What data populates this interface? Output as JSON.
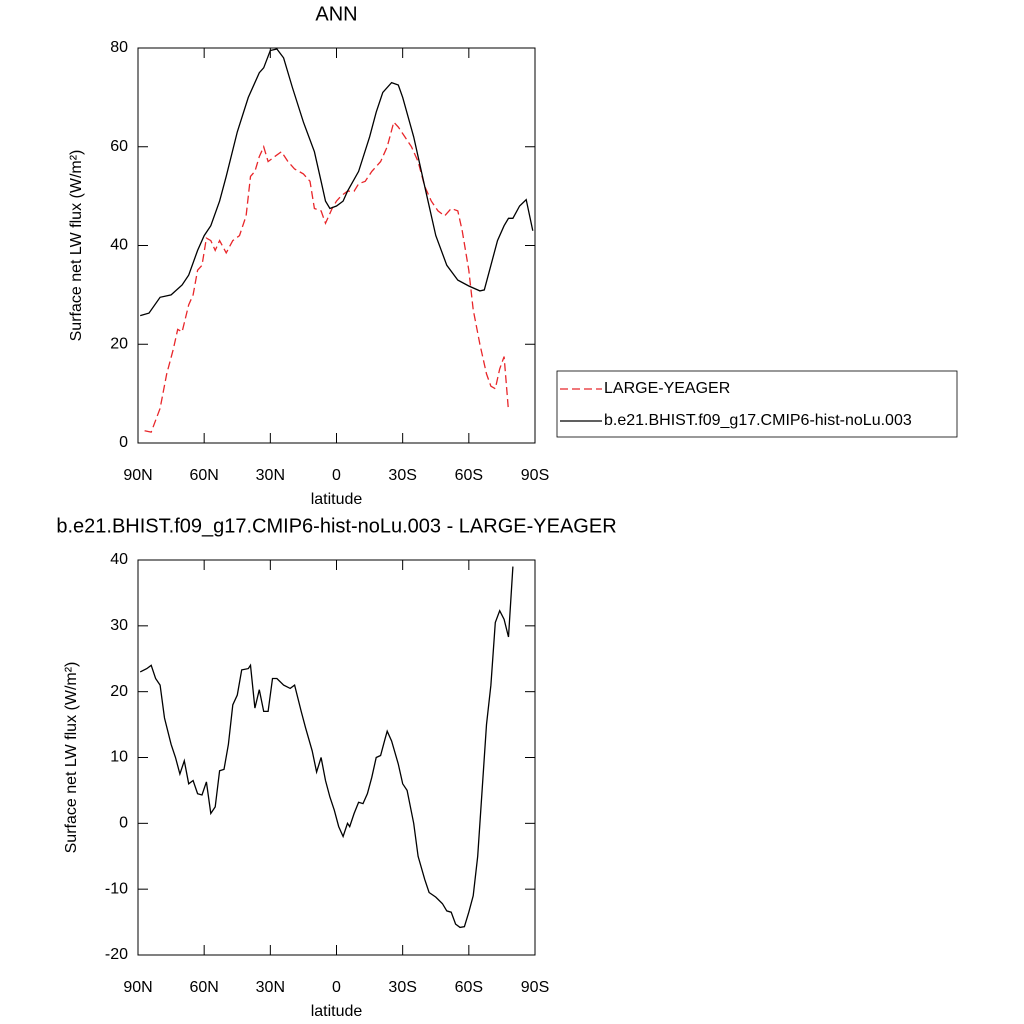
{
  "chart_data": [
    {
      "type": "line",
      "title": "ANN",
      "xlabel": "latitude",
      "ylabel": "Surface net LW flux (W/m²)",
      "xlim": [
        90,
        -90
      ],
      "ylim": [
        0,
        80
      ],
      "xticks": [
        {
          "value": 90,
          "label": "90N"
        },
        {
          "value": 60,
          "label": "60N"
        },
        {
          "value": 30,
          "label": "30N"
        },
        0,
        {
          "value": -30,
          "label": "30S"
        },
        {
          "value": -60,
          "label": "60S"
        },
        {
          "value": -90,
          "label": "90S"
        }
      ],
      "yticks": [
        0,
        20,
        40,
        60,
        80
      ],
      "legend": "right",
      "series": [
        {
          "name": "LARGE-YEAGER",
          "color": "#e8262a",
          "line_style": "dashed",
          "x": [
            87,
            84,
            80,
            77,
            74,
            72,
            70,
            67,
            65,
            63,
            61,
            59,
            57,
            55,
            53,
            50,
            47,
            44,
            41,
            39,
            37,
            35,
            33,
            31,
            28,
            25,
            22,
            19,
            15,
            12,
            10,
            7,
            5,
            2,
            0,
            -2,
            -5,
            -8,
            -10,
            -13,
            -16,
            -20,
            -23,
            -26,
            -28,
            -31,
            -34,
            -37,
            -40,
            -43,
            -46,
            -49,
            -52,
            -55,
            -57,
            -60,
            -62,
            -65,
            -68,
            -70,
            -72,
            -74,
            -76,
            -78
          ],
          "values": [
            2.5,
            2.2,
            7,
            14,
            19,
            23,
            22.5,
            28,
            30,
            35,
            36,
            41.5,
            41,
            39,
            41,
            38.5,
            41,
            42,
            46,
            54,
            55,
            58,
            60,
            57,
            58,
            59,
            57,
            55.5,
            54.5,
            53,
            47.5,
            47,
            44.5,
            47.5,
            49,
            50,
            51,
            51,
            52.5,
            53,
            55,
            57,
            60,
            65,
            64,
            62,
            60,
            57,
            52,
            49,
            47,
            46,
            47.5,
            47,
            43,
            35,
            27,
            20,
            14,
            11.5,
            11,
            15,
            17.5,
            6.5
          ]
        },
        {
          "name": "b.e21.BHIST.f09_g17.CMIP6-hist-noLu.003",
          "color": "#000000",
          "line_style": "solid",
          "x": [
            89,
            85,
            80,
            75,
            70,
            67,
            63,
            60,
            57,
            53,
            50,
            45,
            40,
            35,
            33,
            30,
            27,
            24,
            20,
            15,
            10,
            7,
            5,
            3,
            0,
            -3,
            -5,
            -10,
            -15,
            -18,
            -21,
            -25,
            -28,
            -30,
            -35,
            -40,
            -45,
            -50,
            -55,
            -60,
            -65,
            -67,
            -70,
            -73,
            -76,
            -78,
            -80,
            -83,
            -86,
            -89
          ],
          "values": [
            25.8,
            26.3,
            29.5,
            30,
            32,
            34,
            39,
            42,
            44,
            49,
            54,
            63,
            70,
            75,
            76,
            79.5,
            79.8,
            78,
            72,
            65,
            59,
            53,
            49,
            47.5,
            48,
            49,
            51,
            55,
            62,
            67,
            71,
            73,
            72.5,
            70,
            62,
            52,
            42,
            36,
            33,
            31.8,
            30.8,
            31,
            36,
            41,
            44,
            45.5,
            45.5,
            48,
            49.3,
            43
          ]
        }
      ]
    },
    {
      "type": "line",
      "title": "b.e21.BHIST.f09_g17.CMIP6-hist-noLu.003 - LARGE-YEAGER",
      "xlabel": "latitude",
      "ylabel": "Surface net LW flux (W/m²)",
      "xlim": [
        90,
        -90
      ],
      "ylim": [
        -20,
        40
      ],
      "xticks": [
        {
          "value": 90,
          "label": "90N"
        },
        {
          "value": 60,
          "label": "60N"
        },
        {
          "value": 30,
          "label": "30N"
        },
        0,
        {
          "value": -30,
          "label": "30S"
        },
        {
          "value": -60,
          "label": "60S"
        },
        {
          "value": -90,
          "label": "90S"
        }
      ],
      "yticks": [
        -20,
        -10,
        0,
        10,
        20,
        30,
        40
      ],
      "series": [
        {
          "color": "#000000",
          "line_style": "solid",
          "x": [
            89,
            86,
            84,
            82,
            80,
            78,
            75,
            73,
            71,
            69,
            67,
            65,
            63,
            61,
            59,
            57,
            55,
            53,
            51,
            49,
            47,
            45,
            43,
            40,
            39,
            37,
            35,
            33,
            31,
            29,
            27,
            24,
            21,
            19,
            16,
            14,
            11,
            9,
            7,
            5,
            3,
            1,
            -1,
            -3,
            -5,
            -6,
            -8,
            -10,
            -12,
            -14,
            -16,
            -18,
            -20,
            -22,
            -23,
            -25,
            -28,
            -30,
            -32,
            -35,
            -37,
            -40,
            -42,
            -45,
            -48,
            -50,
            -52,
            -54,
            -56,
            -58,
            -60,
            -62,
            -64,
            -66,
            -68,
            -70,
            -72,
            -74,
            -76,
            -78,
            -80
          ],
          "values": [
            23,
            23.5,
            24,
            22,
            21,
            16,
            12,
            10,
            7.5,
            9.5,
            6,
            6.5,
            4.5,
            4.3,
            6.3,
            1.5,
            2.5,
            8,
            8.2,
            12,
            18,
            19.5,
            23.3,
            23.5,
            24,
            17.5,
            20.3,
            17,
            17,
            22,
            22,
            21,
            20.5,
            21,
            17,
            14.5,
            11,
            7.8,
            10,
            6.5,
            4,
            2,
            -0.5,
            -2,
            0,
            -0.5,
            1.5,
            3.2,
            3,
            4.5,
            7,
            10,
            10.3,
            12.8,
            14,
            12.5,
            9,
            6,
            5,
            0,
            -5,
            -8.5,
            -10.5,
            -11.2,
            -12.2,
            -13.3,
            -13.5,
            -15.3,
            -15.8,
            -15.7,
            -13.5,
            -11,
            -5,
            5,
            15,
            21,
            30.5,
            32.3,
            31,
            28.3,
            39
          ]
        }
      ]
    }
  ]
}
